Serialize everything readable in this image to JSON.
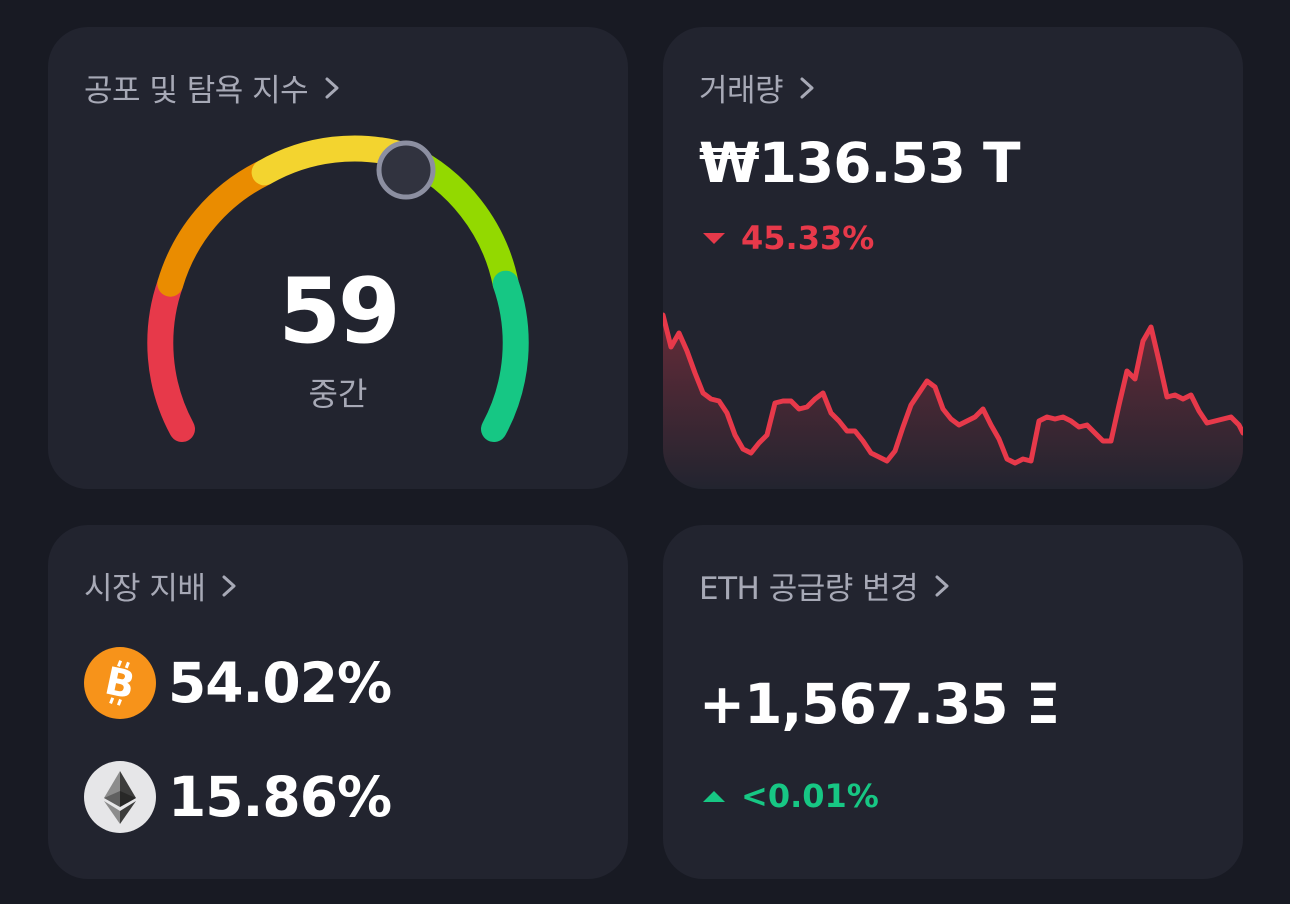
{
  "fear_greed": {
    "title": "공포 및 탐욕 지수",
    "value": "59",
    "label": "중간",
    "level": 59
  },
  "volume": {
    "title": "거래량",
    "value": "₩136.53 T",
    "change": "45.33%",
    "change_direction": "down",
    "line_color": "#e7394a"
  },
  "dominance": {
    "title": "시장 지배",
    "items": [
      {
        "coin": "BTC",
        "icon": "bitcoin-icon",
        "value": "54.02%"
      },
      {
        "coin": "ETH",
        "icon": "ethereum-icon",
        "value": "15.86%"
      }
    ]
  },
  "eth_supply": {
    "title": "ETH 공급량 변경",
    "value": "+1,567.35 Ξ",
    "change": "<0.01%",
    "change_direction": "up"
  },
  "colors": {
    "down": "#e7394a",
    "up": "#17c784",
    "card": "#22242f",
    "background": "#181a23",
    "muted": "#a7a9b6"
  }
}
